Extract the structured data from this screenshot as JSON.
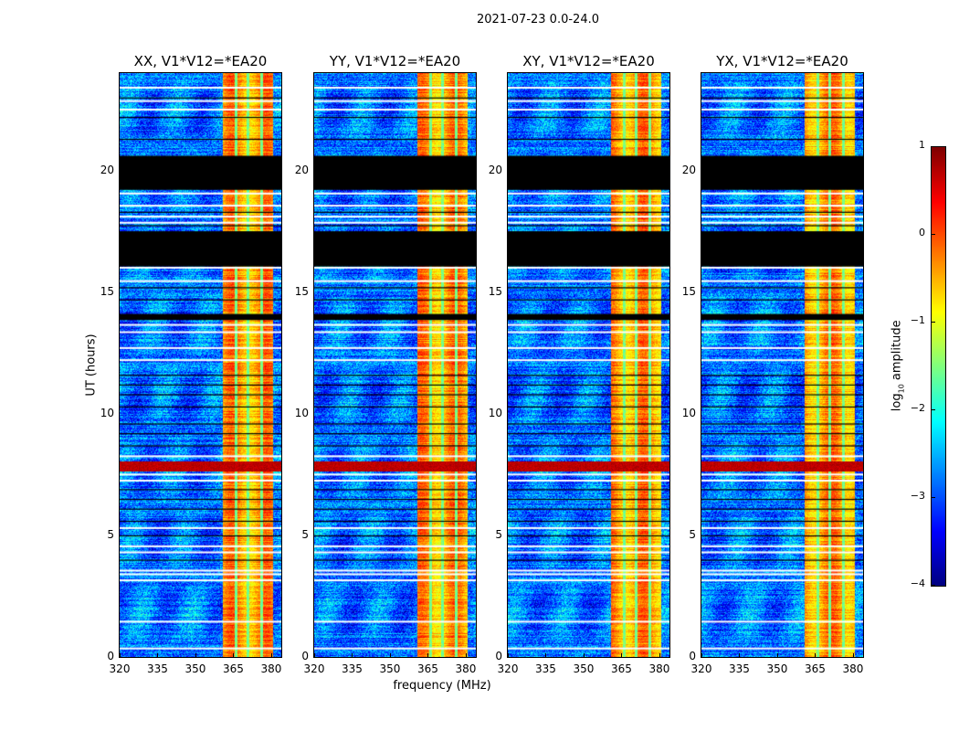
{
  "suptitle": "2021-07-23 0.0-24.0",
  "chart_data": {
    "type": "heatmap",
    "title": "2021-07-23 0.0-24.0",
    "xlabel": "frequency (MHz)",
    "ylabel": "UT (hours)",
    "xlim": [
      320,
      384
    ],
    "ylim": [
      0,
      24
    ],
    "xticks": [
      320,
      335,
      350,
      365,
      380
    ],
    "yticks": [
      0,
      5,
      10,
      15,
      20
    ],
    "panels": [
      {
        "title": "XX, V1*V12=*EA20"
      },
      {
        "title": "YY, V1*V12=*EA20"
      },
      {
        "title": "XY, V1*V12=*EA20"
      },
      {
        "title": "YX, V1*V12=*EA20"
      }
    ],
    "colorbar": {
      "label": "log10 amplitude",
      "label_main": "log",
      "label_sub": "10",
      "label_rest": " amplitude",
      "range": [
        -4,
        1
      ],
      "ticks": [
        1,
        0,
        -1,
        -2,
        -3,
        -4
      ],
      "colormap": "jet"
    },
    "background_level": -2.8,
    "rfi_band_mhz": [
      360.7,
      380.4
    ],
    "rfi_band_level": -0.4,
    "rfi_dark_columns_mhz": [
      366,
      370.5,
      376
    ],
    "flagged_black_hours": [
      [
        19.2,
        20.6
      ],
      [
        16.05,
        17.5
      ],
      [
        13.85,
        14.1
      ]
    ],
    "bright_band_hours": [
      7.65,
      8.05
    ],
    "white_gap_hours": [
      23.4,
      22.85,
      22.5,
      19.05,
      18.55,
      18.1,
      17.85,
      16.0,
      15.45,
      13.65,
      13.35,
      12.7,
      12.2,
      8.25,
      7.5,
      7.25,
      5.3,
      4.55,
      4.3,
      3.55,
      3.4,
      3.15,
      1.45,
      0.35
    ],
    "black_line_hours": [
      23.0,
      22.2,
      21.3,
      18.3,
      17.75,
      15.2,
      14.7,
      11.6,
      11.2,
      10.8,
      10.3,
      9.6,
      9.2,
      8.7,
      6.9,
      6.5,
      6.1,
      5.6,
      5.0,
      4.0
    ]
  }
}
